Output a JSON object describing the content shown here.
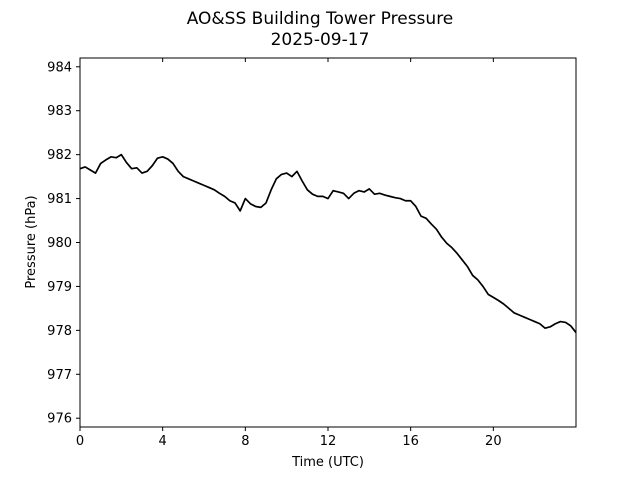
{
  "chart_data": {
    "type": "line",
    "title": "AO&SS Building Tower Pressure",
    "subtitle": "2025-09-17",
    "xlabel": "Time (UTC)",
    "ylabel": "Pressure (hPa)",
    "xlim": [
      0,
      24
    ],
    "ylim": [
      975.8,
      984.2
    ],
    "xticks": [
      0,
      4,
      8,
      12,
      16,
      20
    ],
    "yticks": [
      976,
      977,
      978,
      979,
      980,
      981,
      982,
      983,
      984
    ],
    "grid": false,
    "series": [
      {
        "color": "#000000",
        "x": [
          0,
          0.25,
          0.5,
          0.75,
          1.0,
          1.25,
          1.5,
          1.75,
          2.0,
          2.25,
          2.5,
          2.75,
          3.0,
          3.25,
          3.5,
          3.75,
          4.0,
          4.25,
          4.5,
          4.75,
          5.0,
          5.25,
          5.5,
          5.75,
          6.0,
          6.25,
          6.5,
          6.75,
          7.0,
          7.25,
          7.5,
          7.75,
          8.0,
          8.25,
          8.5,
          8.75,
          9.0,
          9.25,
          9.5,
          9.75,
          10.0,
          10.25,
          10.5,
          10.75,
          11.0,
          11.25,
          11.5,
          11.75,
          12.0,
          12.25,
          12.5,
          12.75,
          13.0,
          13.25,
          13.5,
          13.75,
          14.0,
          14.25,
          14.5,
          14.75,
          15.0,
          15.25,
          15.5,
          15.75,
          16.0,
          16.25,
          16.5,
          16.75,
          17.0,
          17.25,
          17.5,
          17.75,
          18.0,
          18.25,
          18.5,
          18.75,
          19.0,
          19.25,
          19.5,
          19.75,
          20.0,
          20.25,
          20.5,
          20.75,
          21.0,
          21.25,
          21.5,
          21.75,
          22.0,
          22.25,
          22.5,
          22.75,
          23.0,
          23.25,
          23.5,
          23.75,
          24.0
        ],
        "y": [
          981.68,
          981.72,
          981.65,
          981.58,
          981.8,
          981.88,
          981.95,
          981.93,
          982.0,
          981.82,
          981.68,
          981.7,
          981.58,
          981.62,
          981.75,
          981.92,
          981.95,
          981.9,
          981.8,
          981.62,
          981.5,
          981.45,
          981.4,
          981.35,
          981.3,
          981.25,
          981.2,
          981.12,
          981.05,
          980.95,
          980.9,
          980.72,
          981.0,
          980.88,
          980.82,
          980.8,
          980.9,
          981.2,
          981.45,
          981.55,
          981.58,
          981.5,
          981.62,
          981.4,
          981.2,
          981.1,
          981.05,
          981.05,
          981.0,
          981.18,
          981.15,
          981.12,
          981.0,
          981.12,
          981.18,
          981.15,
          981.22,
          981.1,
          981.12,
          981.08,
          981.05,
          981.02,
          981.0,
          980.95,
          980.95,
          980.82,
          980.6,
          980.55,
          980.42,
          980.3,
          980.12,
          979.98,
          979.88,
          979.75,
          979.6,
          979.45,
          979.25,
          979.15,
          979.0,
          978.82,
          978.75,
          978.68,
          978.6,
          978.5,
          978.4,
          978.35,
          978.3,
          978.25,
          978.2,
          978.15,
          978.05,
          978.08,
          978.15,
          978.2,
          978.18,
          978.1,
          977.95
        ]
      }
    ]
  }
}
